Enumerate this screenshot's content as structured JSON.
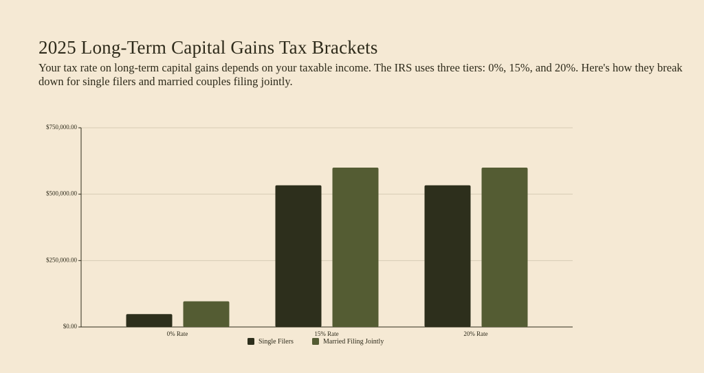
{
  "chart_data": {
    "type": "bar",
    "title": "2025 Long-Term Capital Gains Tax Brackets",
    "subtitle": "Your tax rate on long-term capital gains depends on your taxable income. The IRS uses three tiers: 0%, 15%, and 20%. Here's how they break down for single filers and married couples filing jointly.",
    "categories": [
      "0% Rate",
      "15% Rate",
      "20% Rate"
    ],
    "series": [
      {
        "name": "Single Filers",
        "color": "#2d2f1c",
        "values": [
          48350,
          533400,
          533400
        ]
      },
      {
        "name": "Married Filing Jointly",
        "color": "#545c33",
        "values": [
          96700,
          600050,
          600050
        ]
      }
    ],
    "ylim": [
      0,
      750000
    ],
    "yticks": [
      {
        "value": 0,
        "label": "$0.00"
      },
      {
        "value": 250000,
        "label": "$250,000.00"
      },
      {
        "value": 500000,
        "label": "$500,000.00"
      },
      {
        "value": 750000,
        "label": "$750,000.00"
      }
    ],
    "grid": true
  }
}
